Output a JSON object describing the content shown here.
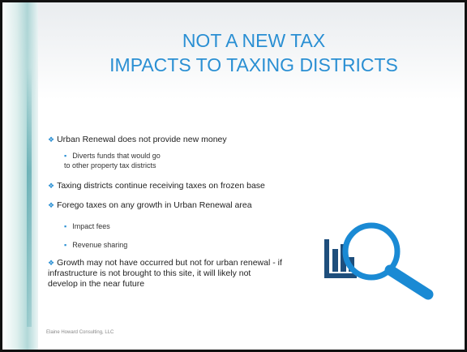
{
  "title": [
    "NOT A NEW TAX",
    "IMPACTS TO TAXING DISTRICTS"
  ],
  "bullets": [
    {
      "text": "Urban Renewal does not provide new money",
      "sub": [
        "Diverts funds that would go\nto other property tax districts"
      ]
    },
    {
      "text": "Taxing districts continue receiving taxes on frozen base"
    },
    {
      "text": "Forego taxes on any growth in Urban Renewal area",
      "sub": [
        "Impact fees",
        "Revenue sharing"
      ]
    },
    {
      "text": "Growth may not have occurred but not for urban renewal - if infrastructure is not brought to this site, it will likely not develop in the near future"
    }
  ],
  "footer": "Elaine Howard Consulting, LLC"
}
